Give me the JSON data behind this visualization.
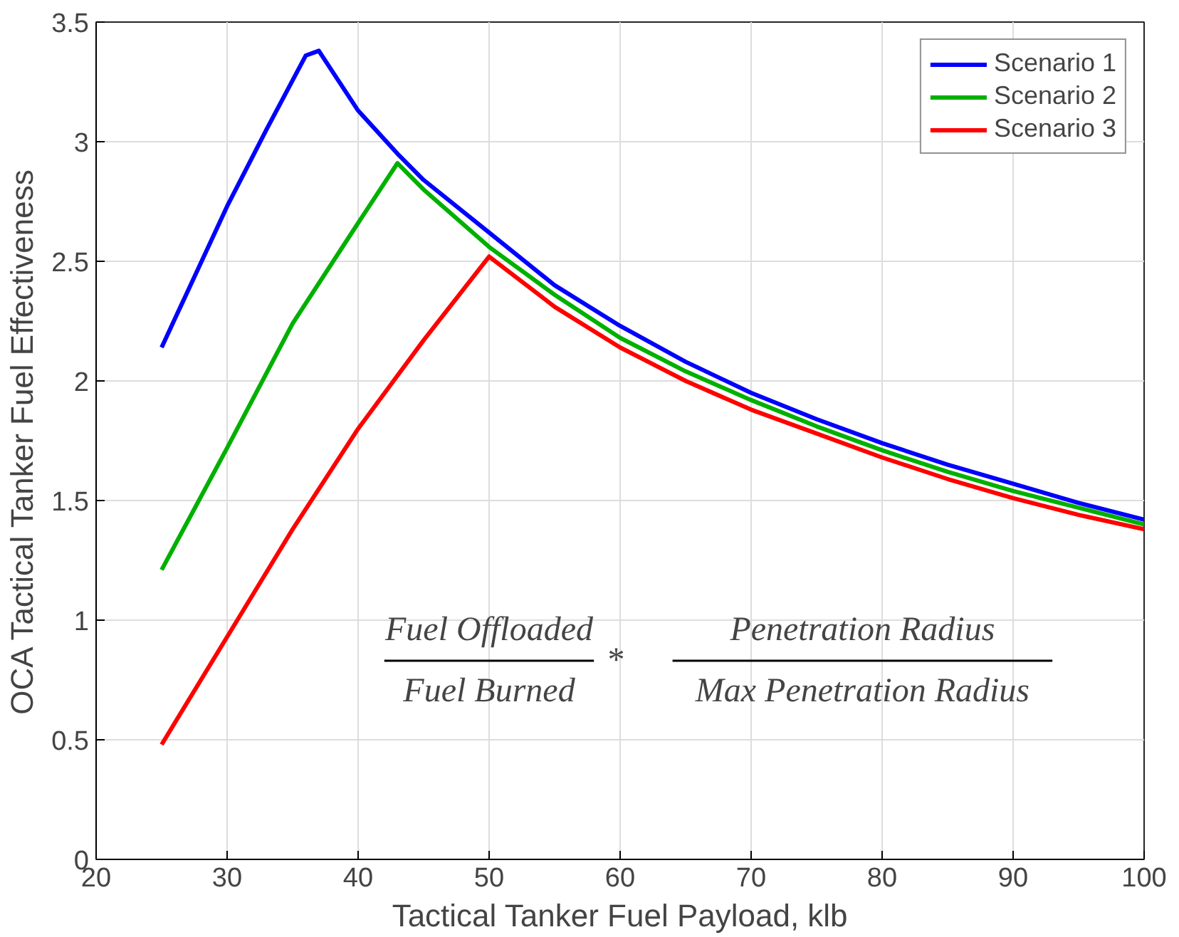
{
  "chart_data": {
    "type": "line",
    "xlabel": "Tactical Tanker Fuel Payload, klb",
    "ylabel": "OCA Tactical Tanker Fuel Effectiveness",
    "xlim": [
      20,
      100
    ],
    "xticks": [
      20,
      30,
      40,
      50,
      60,
      70,
      80,
      90,
      100
    ],
    "ylim": [
      0,
      3.5
    ],
    "yticks": [
      0,
      0.5,
      1,
      1.5,
      2,
      2.5,
      3,
      3.5
    ],
    "grid": true,
    "legend": "top right",
    "marker": "none",
    "line_style": "solid",
    "annotations": [
      "Fuel Offloaded",
      "Fuel Burned",
      "*",
      "Penetration Radius",
      "Max Penetration Radius"
    ],
    "series": [
      {
        "name": "Scenario 1",
        "color": "#0000ff",
        "x": [
          25,
          30,
          33,
          36,
          37,
          40,
          43,
          45,
          50,
          55,
          60,
          65,
          70,
          75,
          80,
          85,
          90,
          95,
          100
        ],
        "values": [
          2.14,
          2.73,
          3.05,
          3.36,
          3.38,
          3.13,
          2.95,
          2.84,
          2.62,
          2.4,
          2.23,
          2.08,
          1.95,
          1.84,
          1.74,
          1.65,
          1.57,
          1.49,
          1.42
        ]
      },
      {
        "name": "Scenario 2",
        "color": "#00b000",
        "x": [
          25,
          30,
          35,
          40,
          43,
          45,
          50,
          55,
          60,
          65,
          70,
          75,
          80,
          85,
          90,
          95,
          100
        ],
        "values": [
          1.21,
          1.72,
          2.24,
          2.66,
          2.91,
          2.8,
          2.56,
          2.36,
          2.18,
          2.04,
          1.92,
          1.81,
          1.71,
          1.62,
          1.54,
          1.47,
          1.4
        ]
      },
      {
        "name": "Scenario 3",
        "color": "#ff0000",
        "x": [
          25,
          30,
          35,
          40,
          45,
          50,
          55,
          60,
          65,
          70,
          75,
          80,
          85,
          90,
          95,
          100
        ],
        "values": [
          0.48,
          0.93,
          1.38,
          1.8,
          2.17,
          2.52,
          2.31,
          2.14,
          2.0,
          1.88,
          1.78,
          1.68,
          1.59,
          1.51,
          1.44,
          1.38
        ]
      }
    ]
  }
}
